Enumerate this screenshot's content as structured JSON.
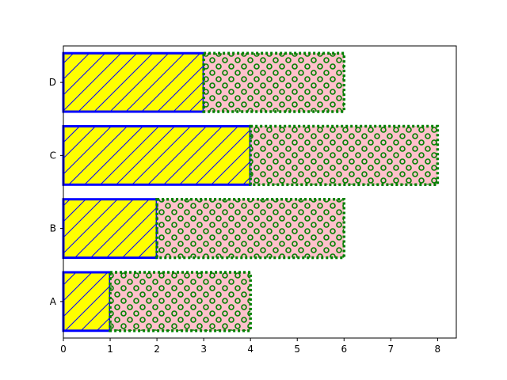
{
  "chart_data": {
    "type": "bar",
    "orientation": "horizontal",
    "stacked": true,
    "categories": [
      "A",
      "B",
      "C",
      "D"
    ],
    "series": [
      {
        "values": [
          1,
          2,
          4,
          3
        ],
        "fill": "#ffff00",
        "edge": "#0000ff",
        "hatch": "diagonal",
        "hatch_color": "#0000ff",
        "edge_style": "solid"
      },
      {
        "values": [
          3,
          4,
          4,
          3
        ],
        "fill": "#ffc0cb",
        "edge": "#008000",
        "hatch": "circles",
        "hatch_color": "#008000",
        "edge_style": "dotted"
      }
    ],
    "xlim": [
      0,
      8.4
    ],
    "xticks": [
      0,
      1,
      2,
      3,
      4,
      5,
      6,
      7,
      8
    ],
    "title": "",
    "xlabel": "",
    "ylabel": "",
    "grid": false,
    "legend": false
  }
}
